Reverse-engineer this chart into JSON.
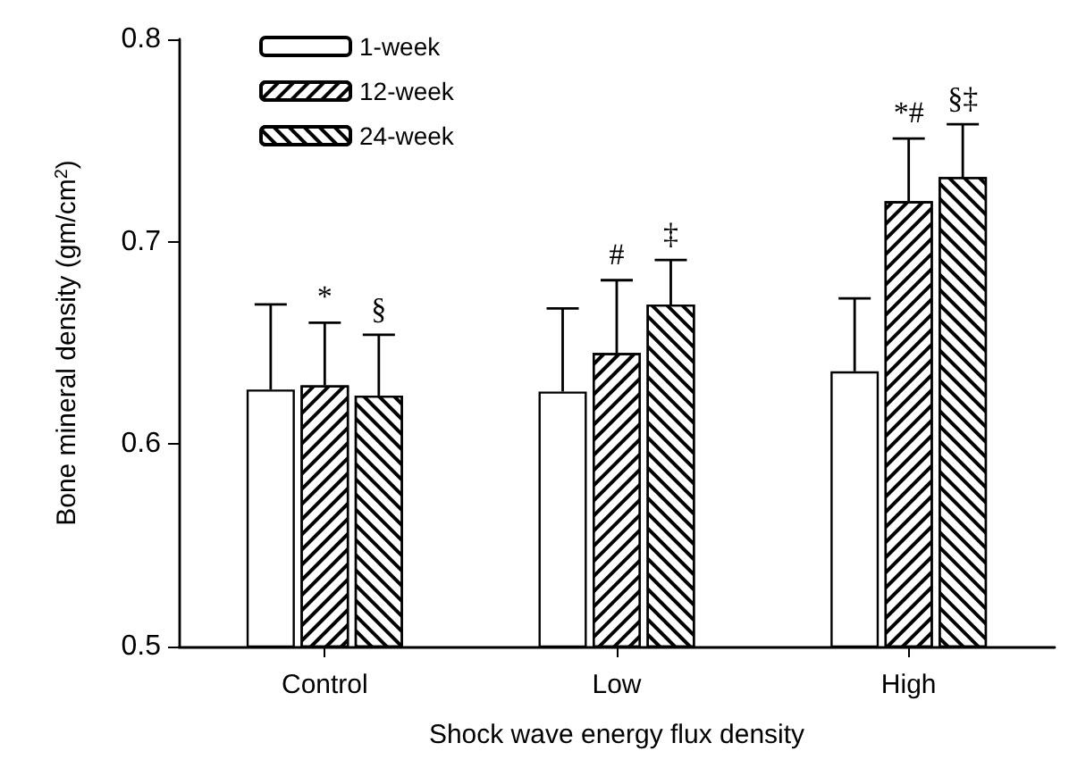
{
  "chart_data": {
    "type": "bar",
    "xlabel": "Shock wave energy flux density",
    "ylabel": "Bone mineral density (gm/cm$^{2}$)",
    "categories": [
      "Control",
      "Low",
      "High"
    ],
    "series": [
      {
        "name": "1-week",
        "color": "#ffffff",
        "values": [
          0.627,
          0.626,
          0.636
        ],
        "errors": [
          [
            0.627,
            0.669
          ],
          [
            0.626,
            0.667
          ],
          [
            0.636,
            0.672
          ]
        ]
      },
      {
        "name": "12-week",
        "color": "#ffffff",
        "values": [
          0.629,
          0.645,
          0.72
        ],
        "errors": [
          [
            0.629,
            0.66
          ],
          [
            0.645,
            0.681
          ],
          [
            0.72,
            0.751
          ]
        ],
        "value_labels": [
          "*",
          "#",
          "*#"
        ]
      },
      {
        "name": "24-week",
        "color": "#ffffff",
        "values": [
          0.624,
          0.669,
          0.732
        ],
        "errors": [
          [
            0.624,
            0.654
          ],
          [
            0.669,
            0.691
          ],
          [
            0.732,
            0.758
          ]
        ],
        "value_labels": [
          "§",
          "‡",
          "§‡"
        ]
      }
    ],
    "ylim": [
      0.5,
      0.8
    ],
    "yticks": [
      0.5,
      0.6,
      0.7,
      0.8
    ],
    "grid": false,
    "legend": "top left"
  }
}
